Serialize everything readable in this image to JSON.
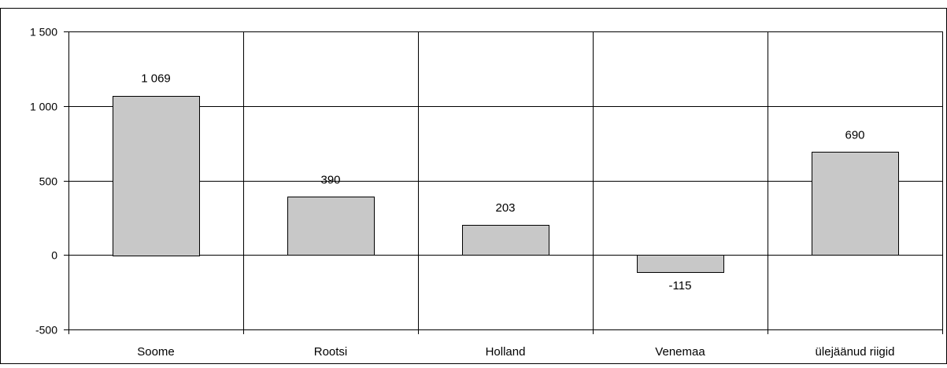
{
  "chart_data": {
    "type": "bar",
    "title": "",
    "xlabel": "",
    "ylabel": "",
    "categories": [
      "Soome",
      "Rootsi",
      "Holland",
      "Venemaa",
      "ülejäänud riigid"
    ],
    "values": [
      1069,
      390,
      203,
      -115,
      690
    ],
    "data_labels": [
      "1 069",
      "390",
      "203",
      "-115",
      "690"
    ],
    "ylim": [
      -500,
      1500
    ],
    "yticks": [
      1500,
      1000,
      500,
      0,
      -500
    ],
    "ytick_labels": [
      "1 500",
      "1 000",
      "500",
      "0",
      "-500"
    ],
    "grid": true,
    "legend": "none",
    "colors": {
      "bar_fill": "#c8c8c8",
      "bar_stroke": "#000000",
      "grid": "#000000",
      "frame": "#000000",
      "background": "#ffffff"
    }
  }
}
